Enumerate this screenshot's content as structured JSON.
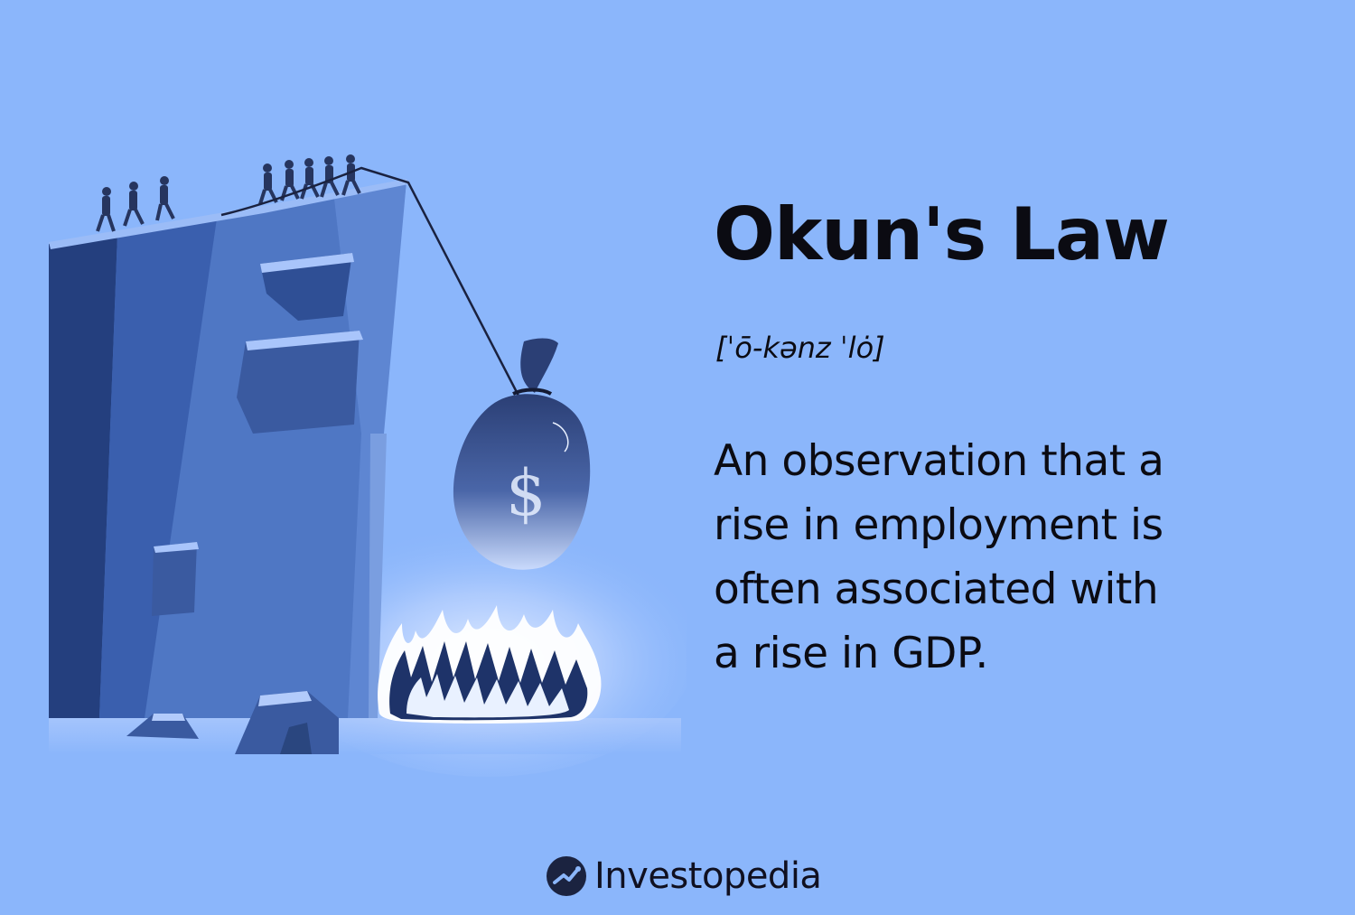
{
  "term": {
    "title": "Okun's Law",
    "pronunciation": "[ˈō-kənz ˈlȯ]",
    "definition_lines": [
      "An observation that a",
      "rise in employment is",
      "often associated with",
      "a rise in GDP."
    ]
  },
  "brand": {
    "name": "Investopedia",
    "icon": "investopedia-logo-icon"
  },
  "illustration": {
    "description_icon": "cliff-money-bag-fire-illustration",
    "bag_symbol": "$"
  },
  "colors": {
    "background": "#8bb6fb",
    "cliff": "#4f77c4",
    "cliff_dark": "#243f7e",
    "text": "#0b0b12",
    "fire_glow": "#dfeaff"
  }
}
